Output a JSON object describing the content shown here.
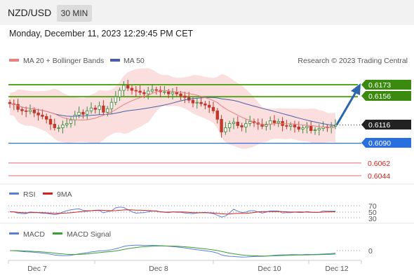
{
  "header": {
    "pair": "NZD/USD",
    "timeframe": "30 MIN"
  },
  "datetime": "Monday, December 11, 2023 12:29:45 PM CET",
  "legend": {
    "ma_bollinger": "MA 20 + Bollinger Bands",
    "ma50": "MA 50",
    "credit": "Research © 2023 Trading Central"
  },
  "colors": {
    "up": "#3a8a3a",
    "down": "#c0392b",
    "bollinger": "#f8caca",
    "ma20": "#e88080",
    "ma50": "#4a5fa6",
    "resistance": "#5aa51f",
    "support_blue": "#2a6fe0",
    "support_red": "#e36c6c",
    "arrow": "#2c66b0",
    "rsi": "#5b7fd6",
    "rsi_ma": "#d62020",
    "macd": "#5b7fd6",
    "macd_signal": "#3aa032"
  },
  "levels": [
    {
      "value": "0.6173",
      "type": "resistance"
    },
    {
      "value": "0.6156",
      "type": "resistance"
    },
    {
      "value": "0.6116",
      "type": "current"
    },
    {
      "value": "0.6090",
      "type": "support_blue"
    },
    {
      "value": "0.6062",
      "type": "support_red"
    },
    {
      "value": "0.6044",
      "type": "support_red"
    }
  ],
  "rsi": {
    "label": "RSI",
    "ma_label": "9MA",
    "ticks": [
      "70",
      "50",
      "30"
    ]
  },
  "macd": {
    "label": "MACD",
    "signal_label": "MACD Signal",
    "zero": "0"
  },
  "x_axis": [
    "Dec 7",
    "Dec 8",
    "Dec 10",
    "Dec 12"
  ],
  "chart_data": {
    "type": "candlestick",
    "symbol": "NZD/USD",
    "timeframe": "30 MIN",
    "y_levels": [
      0.6173,
      0.6156,
      0.6116,
      0.609,
      0.6062,
      0.6044
    ],
    "close_series": [
      0.6146,
      0.6145,
      0.6138,
      0.6136,
      0.6135,
      0.6137,
      0.6133,
      0.613,
      0.6128,
      0.6124,
      0.6117,
      0.6112,
      0.6112,
      0.6116,
      0.6118,
      0.6123,
      0.613,
      0.6134,
      0.6131,
      0.6136,
      0.614,
      0.6138,
      0.6143,
      0.6134,
      0.6139,
      0.6148,
      0.6156,
      0.6165,
      0.6172,
      0.6168,
      0.6165,
      0.6164,
      0.6162,
      0.616,
      0.6164,
      0.6166,
      0.6165,
      0.6163,
      0.6163,
      0.616,
      0.6162,
      0.616,
      0.6157,
      0.6155,
      0.6151,
      0.6147,
      0.6148,
      0.6146,
      0.6144,
      0.6141,
      0.6136,
      0.6124,
      0.6106,
      0.6112,
      0.6118,
      0.612,
      0.6115,
      0.6113,
      0.6118,
      0.6121,
      0.6119,
      0.6117,
      0.6114,
      0.6117,
      0.6122,
      0.6119,
      0.6121,
      0.6115,
      0.6114,
      0.6116,
      0.6113,
      0.611,
      0.6112,
      0.6114,
      0.6108,
      0.6109,
      0.6111,
      0.6113,
      0.6112,
      0.6114,
      0.6116
    ],
    "rsi_range": [
      30,
      70
    ],
    "x_labels": [
      "Dec 7",
      "Dec 8",
      "Dec 10",
      "Dec 12"
    ]
  }
}
